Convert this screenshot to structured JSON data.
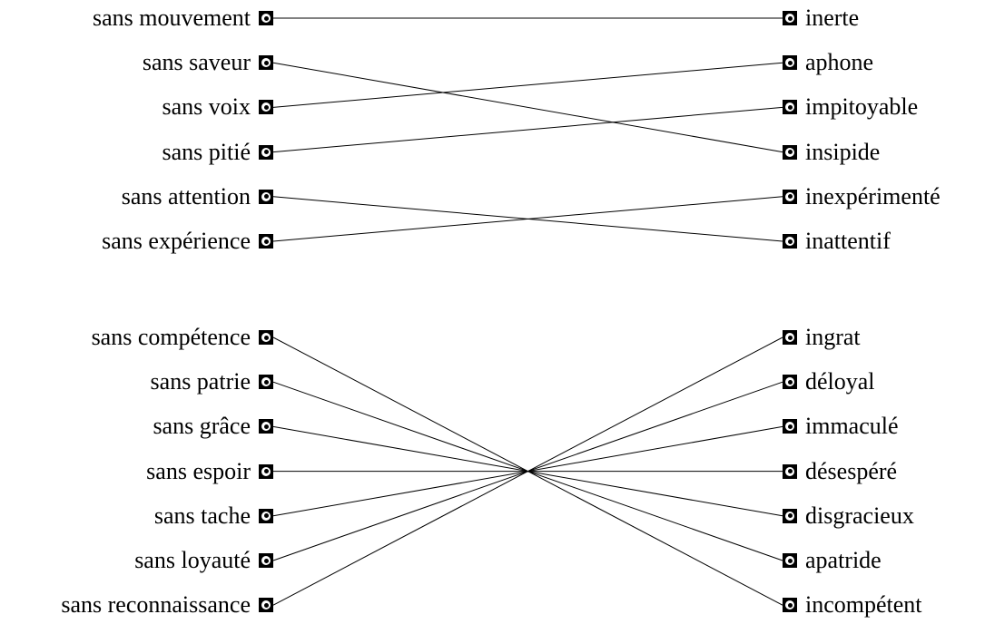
{
  "colors": {
    "line": "#000000",
    "background": "#ffffff"
  },
  "groups": [
    {
      "left": [
        "sans mouvement",
        "sans saveur",
        "sans voix",
        "sans pitié",
        "sans attention",
        "sans expérience"
      ],
      "right": [
        "inerte",
        "aphone",
        "impitoyable",
        "insipide",
        "inexpérimenté",
        "inattentif"
      ],
      "links": [
        [
          0,
          0
        ],
        [
          1,
          3
        ],
        [
          2,
          1
        ],
        [
          3,
          2
        ],
        [
          4,
          5
        ],
        [
          5,
          4
        ]
      ]
    },
    {
      "left": [
        "sans compétence",
        "sans patrie",
        "sans grâce",
        "sans espoir",
        "sans tache",
        "sans loyauté",
        "sans reconnaissance"
      ],
      "right": [
        "ingrat",
        "déloyal",
        "immaculé",
        "désespéré",
        "disgracieux",
        "apatride",
        "incompétent"
      ],
      "links": [
        [
          0,
          6
        ],
        [
          1,
          5
        ],
        [
          2,
          4
        ],
        [
          3,
          3
        ],
        [
          4,
          2
        ],
        [
          5,
          1
        ],
        [
          6,
          0
        ]
      ]
    }
  ]
}
